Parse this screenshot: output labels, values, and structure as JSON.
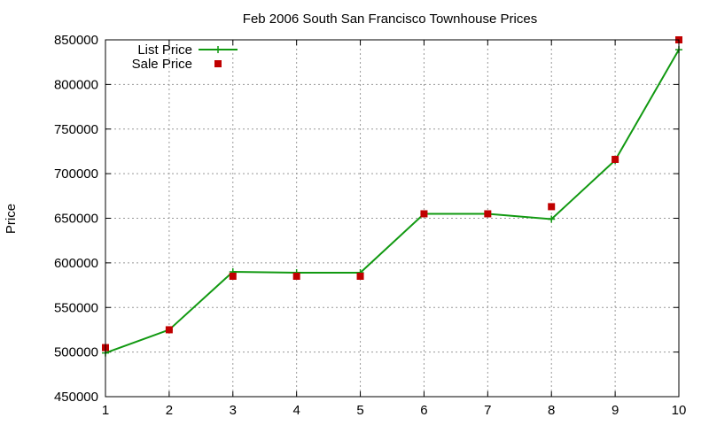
{
  "chart_data": {
    "type": "line",
    "title": "Feb 2006 South San Francisco Townhouse Prices",
    "xlabel": "",
    "ylabel": "Price",
    "x": [
      1,
      2,
      3,
      4,
      5,
      6,
      7,
      8,
      9,
      10
    ],
    "xlim": [
      1,
      10
    ],
    "ylim": [
      450000,
      850000
    ],
    "xticks": [
      "1",
      "2",
      "3",
      "4",
      "5",
      "6",
      "7",
      "8",
      "9",
      "10"
    ],
    "yticks": [
      "450000",
      "500000",
      "550000",
      "600000",
      "650000",
      "700000",
      "750000",
      "800000",
      "850000"
    ],
    "grid": true,
    "legend_position": "top-left",
    "series": [
      {
        "name": "List Price",
        "style": "line-with-plus-markers",
        "color": "#119911",
        "values": [
          499000,
          525000,
          590000,
          589000,
          589000,
          655000,
          655000,
          649000,
          715000,
          839000
        ]
      },
      {
        "name": "Sale Price",
        "style": "square-points",
        "color": "#c00000",
        "values": [
          505000,
          525000,
          585000,
          585000,
          585000,
          655000,
          655000,
          663000,
          716000,
          850000
        ]
      }
    ]
  }
}
